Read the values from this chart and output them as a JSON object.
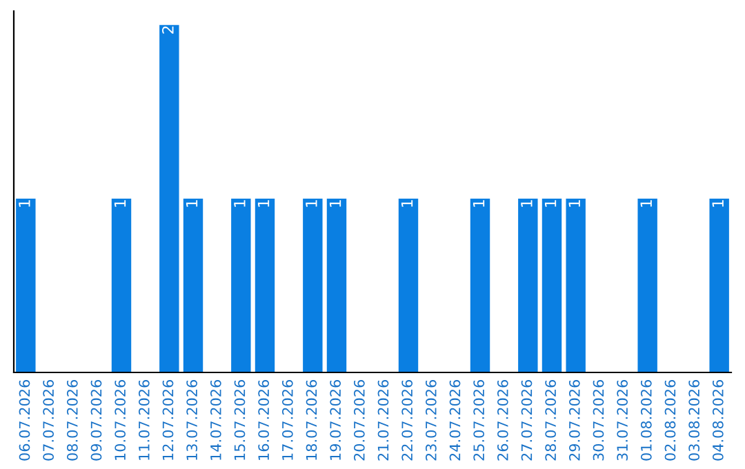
{
  "chart_data": {
    "type": "bar",
    "categories": [
      "06.07.2026",
      "07.07.2026",
      "08.07.2026",
      "09.07.2026",
      "10.07.2026",
      "11.07.2026",
      "12.07.2026",
      "13.07.2026",
      "14.07.2026",
      "15.07.2026",
      "16.07.2026",
      "17.07.2026",
      "18.07.2026",
      "19.07.2026",
      "20.07.2026",
      "21.07.2026",
      "22.07.2026",
      "23.07.2026",
      "24.07.2026",
      "25.07.2026",
      "26.07.2026",
      "27.07.2026",
      "28.07.2026",
      "29.07.2026",
      "30.07.2026",
      "31.07.2026",
      "01.08.2026",
      "02.08.2026",
      "03.08.2026",
      "04.08.2026"
    ],
    "values": [
      1,
      0,
      0,
      0,
      1,
      0,
      2,
      1,
      0,
      1,
      1,
      0,
      1,
      1,
      0,
      0,
      1,
      0,
      0,
      1,
      0,
      1,
      1,
      1,
      0,
      0,
      1,
      0,
      0,
      1
    ],
    "value_labels": [
      "1",
      null,
      null,
      null,
      "1",
      null,
      "2",
      "1",
      null,
      "1",
      "1",
      null,
      "1",
      "1",
      null,
      null,
      "1",
      null,
      null,
      "1",
      null,
      "1",
      "1",
      "1",
      null,
      null,
      "1",
      null,
      null,
      "1"
    ],
    "color": "#0a7fe2",
    "grid": false,
    "legend": false
  }
}
